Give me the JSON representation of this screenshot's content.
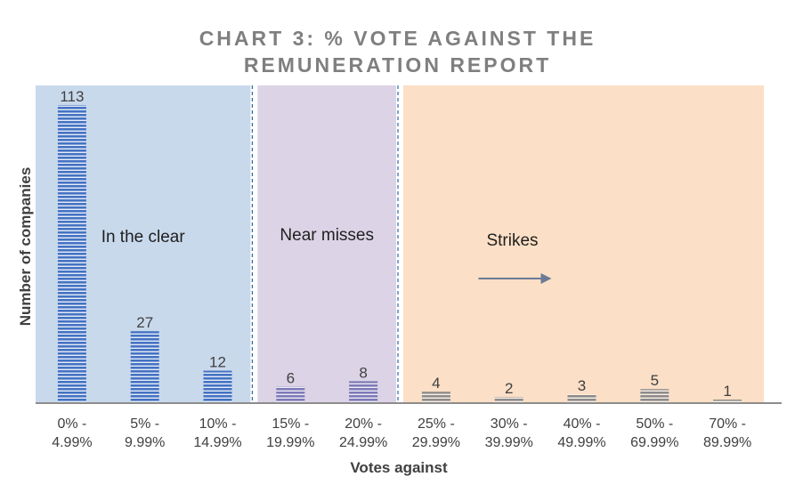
{
  "chart_data": {
    "type": "bar",
    "title_lines": [
      "CHART 3: % VOTE AGAINST THE",
      "REMUNERATION REPORT"
    ],
    "xlabel": "Votes against",
    "ylabel": "Number of companies",
    "categories": [
      [
        "0% -",
        "4.99%"
      ],
      [
        "5% -",
        "9.99%"
      ],
      [
        "10% -",
        "14.99%"
      ],
      [
        "15% -",
        "19.99%"
      ],
      [
        "20% -",
        "24.99%"
      ],
      [
        "25% -",
        "29.99%"
      ],
      [
        "30% -",
        "39.99%"
      ],
      [
        "40% -",
        "49.99%"
      ],
      [
        "50% -",
        "69.99%"
      ],
      [
        "70% -",
        "89.99%"
      ]
    ],
    "values": [
      113,
      27,
      12,
      6,
      8,
      4,
      2,
      3,
      5,
      1
    ],
    "ylim": [
      0,
      113
    ],
    "grid": false,
    "bar_colors": [
      "#4472c4",
      "#4472c4",
      "#4472c4",
      "#7e7ab8",
      "#7e7ab8",
      "#8c8c8c",
      "#8c8c8c",
      "#8c8c8c",
      "#8c8c8c",
      "#8c8c8c"
    ],
    "regions": [
      {
        "label": "In the clear",
        "from_index": 0,
        "to_index": 2,
        "color": "#c9d9ec"
      },
      {
        "label": "Near misses",
        "from_index": 3,
        "to_index": 4,
        "color": "#dcd3e6"
      },
      {
        "label": "Strikes",
        "from_index": 5,
        "to_index": 9,
        "color": "#fbdfc6",
        "arrow": "right"
      }
    ]
  }
}
